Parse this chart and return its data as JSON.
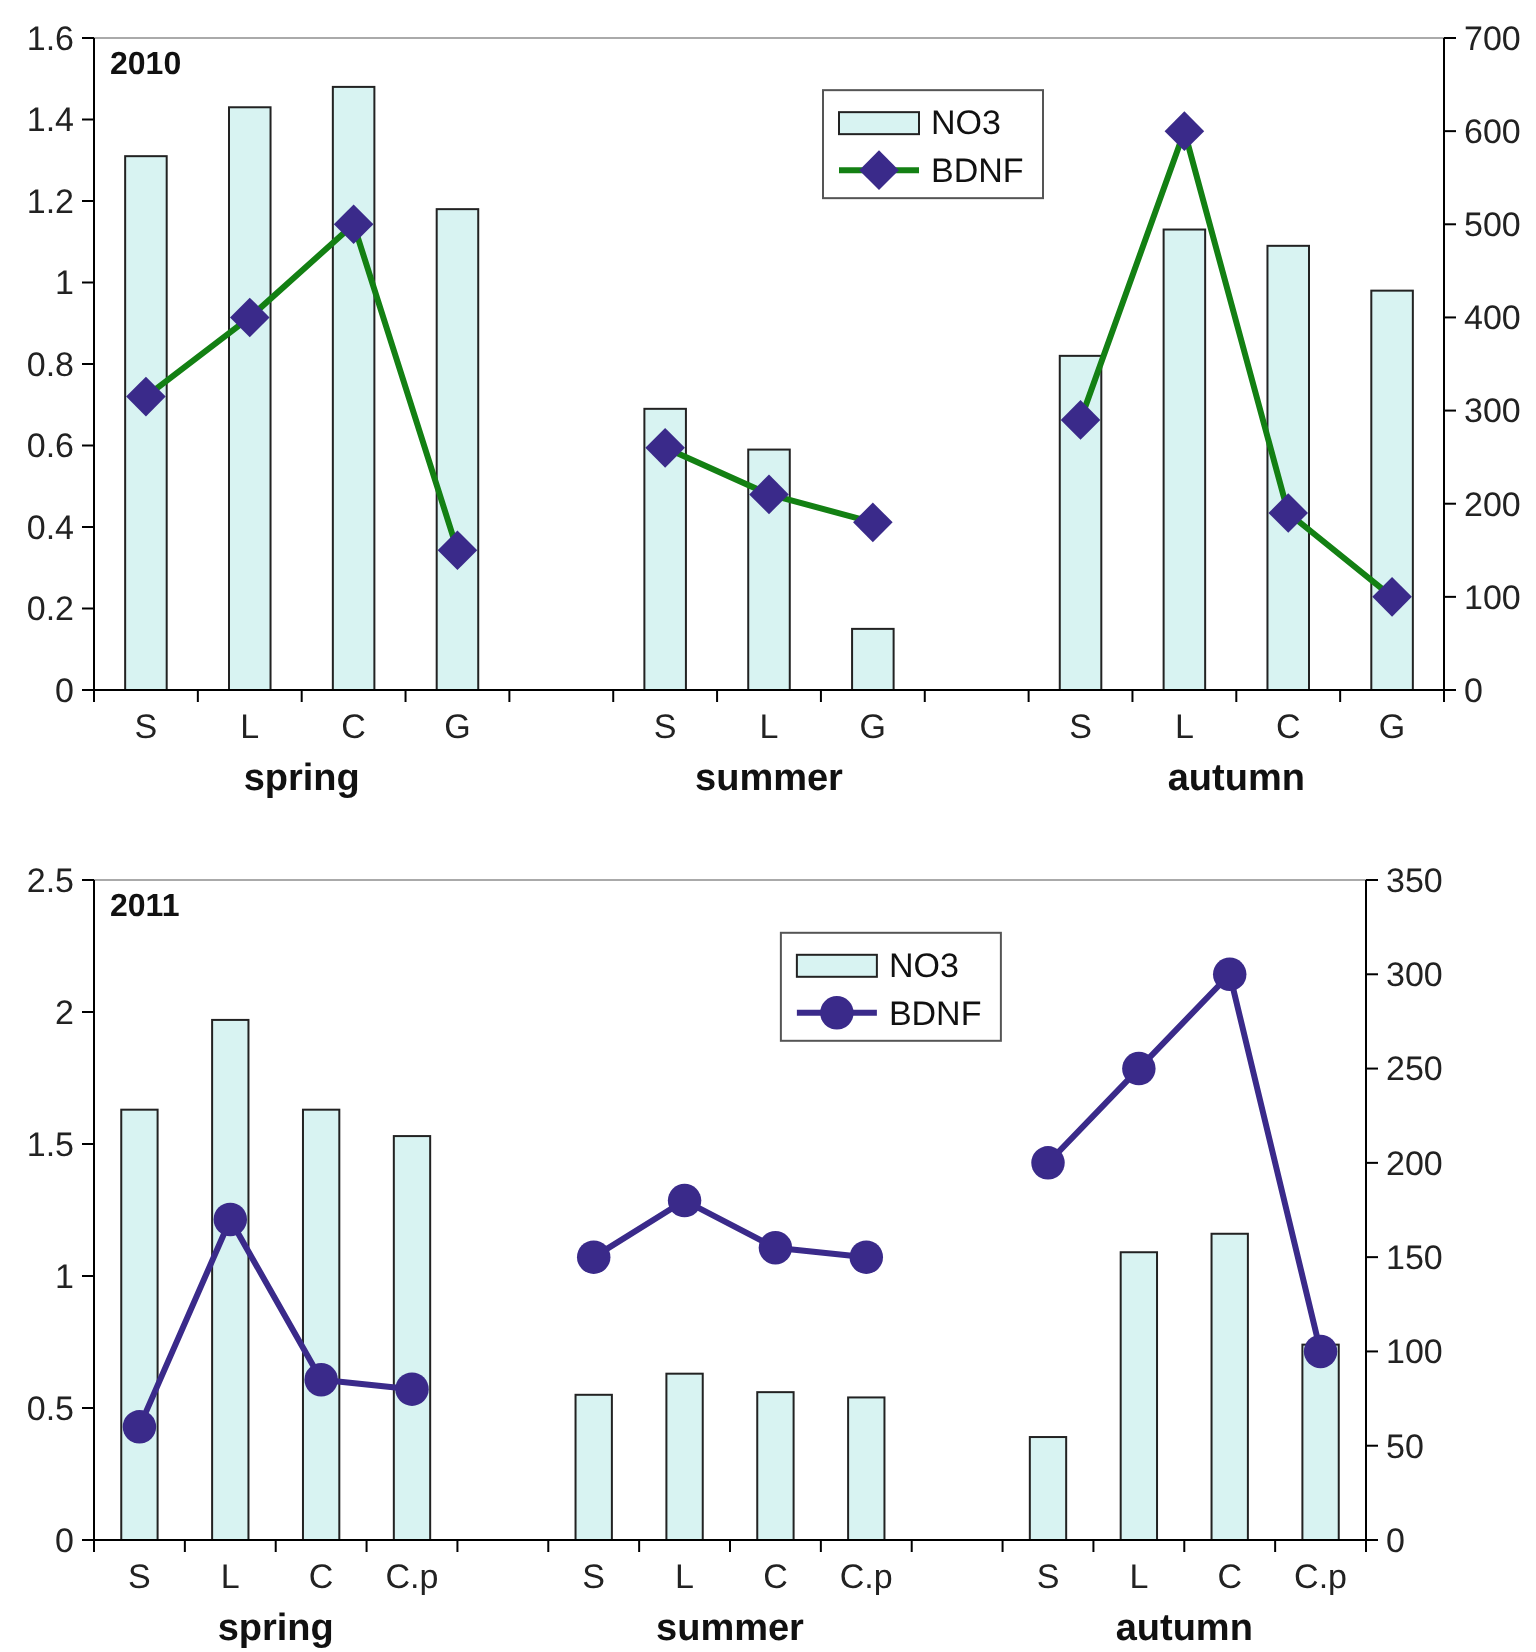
{
  "chart_data": [
    {
      "type": "bar",
      "title": "2010",
      "categories": [
        "S",
        "L",
        "C",
        "G",
        null,
        "S",
        "L",
        "G",
        null,
        "S",
        "L",
        "C",
        "G"
      ],
      "series": [
        {
          "name": "NO3",
          "color": "#d8f3f2",
          "values": [
            1.31,
            1.43,
            1.48,
            1.18,
            null,
            0.69,
            0.59,
            0.15,
            null,
            0.82,
            1.13,
            1.09,
            0.98
          ]
        },
        {
          "name": "BDNF",
          "type": "line",
          "axis": "y2",
          "color": "#138013",
          "colors": [
            "#3a2a8a",
            "#3a2a8a",
            "#3a2a8a",
            "#3a2a8a",
            null,
            "#3a2a8a",
            "#3a2a8a",
            "#3a2a8a",
            null,
            "#3a2a8a",
            "#3a2a8a",
            "#3a2a8a",
            "#3a2a8a"
          ],
          "values": [
            315,
            400,
            500,
            150,
            null,
            260,
            210,
            180,
            null,
            290,
            600,
            190,
            100
          ]
        }
      ],
      "marker": "diamond",
      "ylim": [
        0,
        1.6
      ],
      "yticks": [
        0,
        0.2,
        0.4,
        0.6,
        0.8,
        1,
        1.2,
        1.4,
        1.6
      ],
      "y2lim": [
        0,
        700
      ],
      "y2ticks": [
        0,
        100,
        200,
        300,
        400,
        500,
        600,
        700
      ],
      "legend": "top",
      "annotations": [
        "spring",
        "summer",
        "autumn"
      ]
    },
    {
      "type": "bar",
      "title": "2011",
      "categories": [
        "S",
        "L",
        "C",
        "C.p",
        null,
        "S",
        "L",
        "C",
        "C.p",
        null,
        "S",
        "L",
        "C",
        "C.p"
      ],
      "series": [
        {
          "name": "NO3",
          "color": "#d8f3f2",
          "values": [
            1.63,
            1.97,
            1.63,
            1.53,
            null,
            0.55,
            0.63,
            0.56,
            0.54,
            null,
            0.39,
            1.09,
            1.16,
            0.74
          ]
        },
        {
          "name": "BDNF",
          "type": "line",
          "axis": "y2",
          "color": "#3a2a8a",
          "values": [
            60,
            170,
            85,
            80,
            null,
            150,
            180,
            155,
            150,
            null,
            200,
            250,
            300,
            100
          ]
        }
      ],
      "marker": "circle",
      "ylim": [
        0,
        2.5
      ],
      "yticks": [
        0,
        0.5,
        1,
        1.5,
        2,
        2.5
      ],
      "y2lim": [
        0,
        350
      ],
      "y2ticks": [
        0,
        50,
        100,
        150,
        200,
        250,
        300,
        350
      ],
      "legend": "top",
      "annotations": [
        "spring",
        "summer",
        "autumn"
      ]
    }
  ]
}
